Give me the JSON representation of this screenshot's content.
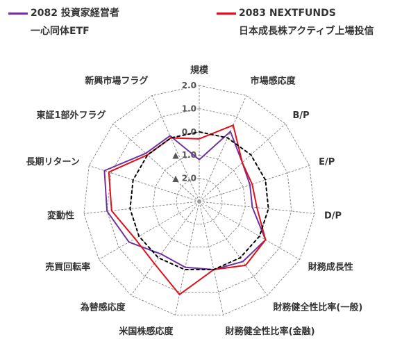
{
  "legend": [
    {
      "line1": "2082 投資家経営者",
      "line2": "一心同体ETF",
      "color": "#7030a0"
    },
    {
      "line1": "2083 NEXTFUNDS",
      "line2": "日本成長株アクティブ上場投信",
      "color": "#e0101a"
    }
  ],
  "chart_data": {
    "type": "radar",
    "categories": [
      "規模",
      "市場感応度",
      "B/P",
      "E/P",
      "D/P",
      "財務成長性",
      "財務健全性比率(一般)",
      "財務健全性比率(金融)",
      "米国株感応度",
      "為替感応度",
      "売買回転率",
      "変動性",
      "長期リターン",
      "東証1部外フラグ",
      "新興市場フラグ"
    ],
    "rlim": [
      -3,
      2
    ],
    "ticks": [
      2.0,
      1.0,
      0.0,
      -1.0,
      -2.0
    ],
    "tick_labels": [
      "2.0",
      "1.0",
      "0.0",
      "▲ 1.0",
      "▲ 2.0"
    ],
    "grid": true,
    "legend_position": "top",
    "series": [
      {
        "name": "2082 投資家経営者一心同体ETF",
        "color": "#7030a0",
        "values": [
          -1.2,
          0.3,
          -0.5,
          -0.7,
          -0.7,
          0.3,
          0.2,
          0.0,
          -0.1,
          -0.2,
          0.5,
          1.0,
          1.3,
          0.1,
          0.1
        ]
      },
      {
        "name": "2083 NEXTFUNDS日本成長株アクティブ上場投信",
        "color": "#e0101a",
        "values": [
          -0.3,
          0.6,
          -0.5,
          -0.6,
          -0.5,
          0.3,
          0.4,
          0.0,
          1.1,
          0.3,
          0.2,
          0.8,
          1.1,
          0.0,
          0.0
        ]
      },
      {
        "name": "",
        "color": "#000000",
        "dashed": true,
        "values": [
          0,
          0,
          0,
          0,
          0,
          0,
          0,
          0,
          0,
          0,
          0,
          0,
          0,
          0,
          0
        ]
      }
    ]
  }
}
